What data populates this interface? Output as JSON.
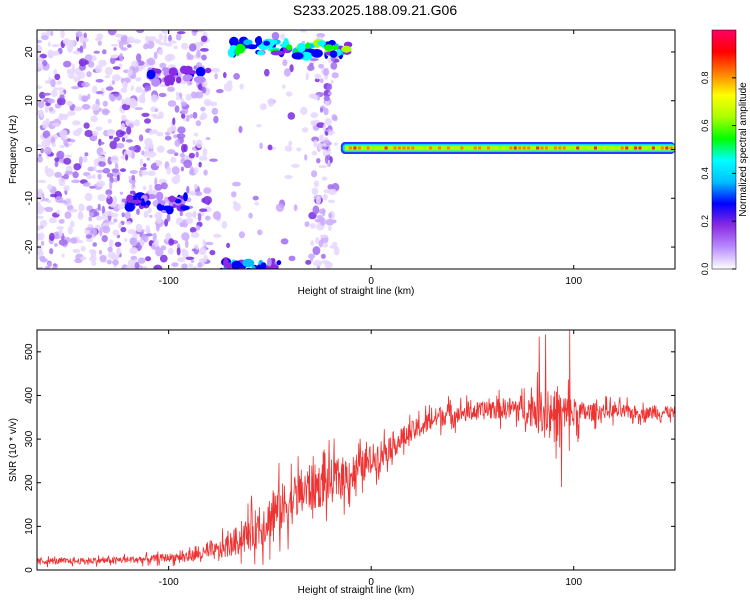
{
  "title": "S233.2025.188.09.21.G06",
  "chart_data": [
    {
      "type": "heatmap",
      "title": "S233.2025.188.09.21.G06",
      "xlabel": "Height of straight line (km)",
      "ylabel": "Frequency (Hz)",
      "xlim": [
        -165,
        150
      ],
      "ylim": [
        -24.5,
        24.5
      ],
      "x_ticks": [
        -100,
        0,
        100
      ],
      "y_ticks": [
        -20,
        -10,
        0,
        10,
        20
      ],
      "colorbar": {
        "label": "Normalized spectral amplitude",
        "ticks": [
          "0.0",
          "0.2",
          "0.4",
          "0.6",
          "0.8"
        ],
        "range": [
          0,
          1
        ],
        "colors": [
          "#ffffff",
          "#b98cff",
          "#8a2be2",
          "#0000ff",
          "#00bfff",
          "#00ffff",
          "#00ff00",
          "#aaff00",
          "#ffff00",
          "#ff8000",
          "#ff0000",
          "#ff0066"
        ]
      },
      "features": [
        {
          "name": "noise region",
          "x_range": [
            -165,
            -17
          ],
          "y_range": [
            -24.5,
            24.5
          ],
          "amplitude": 0.1
        },
        {
          "name": "blob",
          "x": -55,
          "y": 21,
          "amplitude": 0.5
        },
        {
          "name": "blob",
          "x": -25,
          "y": 20.5,
          "amplitude": 0.6
        },
        {
          "name": "blob",
          "x": -60,
          "y": -24,
          "amplitude": 0.4
        },
        {
          "name": "blob",
          "x": -95,
          "y": 15,
          "amplitude": 0.25
        },
        {
          "name": "blob",
          "x": -105,
          "y": -11,
          "amplitude": 0.3
        },
        {
          "name": "main tone",
          "x_range": [
            -15,
            150
          ],
          "y": 0.3,
          "amplitude": 0.9
        }
      ]
    },
    {
      "type": "line",
      "title": "",
      "xlabel": "Height of straight line (km)",
      "ylabel": "SNR (10 * v/v)",
      "xlim": [
        -165,
        150
      ],
      "ylim": [
        0,
        550
      ],
      "x_ticks": [
        -100,
        0,
        100
      ],
      "y_ticks": [
        0,
        100,
        200,
        300,
        400,
        500
      ],
      "color": "#ee3333",
      "x": [
        -165,
        -150,
        -130,
        -110,
        -95,
        -85,
        -75,
        -65,
        -55,
        -45,
        -35,
        -25,
        -15,
        -5,
        5,
        15,
        25,
        35,
        45,
        55,
        65,
        75,
        85,
        95,
        105,
        115,
        125,
        135,
        150
      ],
      "values": [
        20,
        20,
        22,
        25,
        30,
        35,
        45,
        70,
        100,
        140,
        175,
        195,
        210,
        235,
        270,
        300,
        330,
        355,
        360,
        365,
        370,
        370,
        365,
        355,
        360,
        365,
        362,
        360,
        362
      ],
      "noise_amplitude": [
        10,
        10,
        10,
        12,
        15,
        20,
        30,
        50,
        70,
        80,
        80,
        75,
        70,
        55,
        45,
        40,
        35,
        35,
        30,
        30,
        35,
        45,
        70,
        80,
        35,
        25,
        25,
        20,
        20
      ],
      "spikes": [
        {
          "x": 83,
          "y": 535
        },
        {
          "x": 86,
          "y": 540
        },
        {
          "x": 98,
          "y": 550
        },
        {
          "x": 94,
          "y": 190
        }
      ]
    }
  ]
}
